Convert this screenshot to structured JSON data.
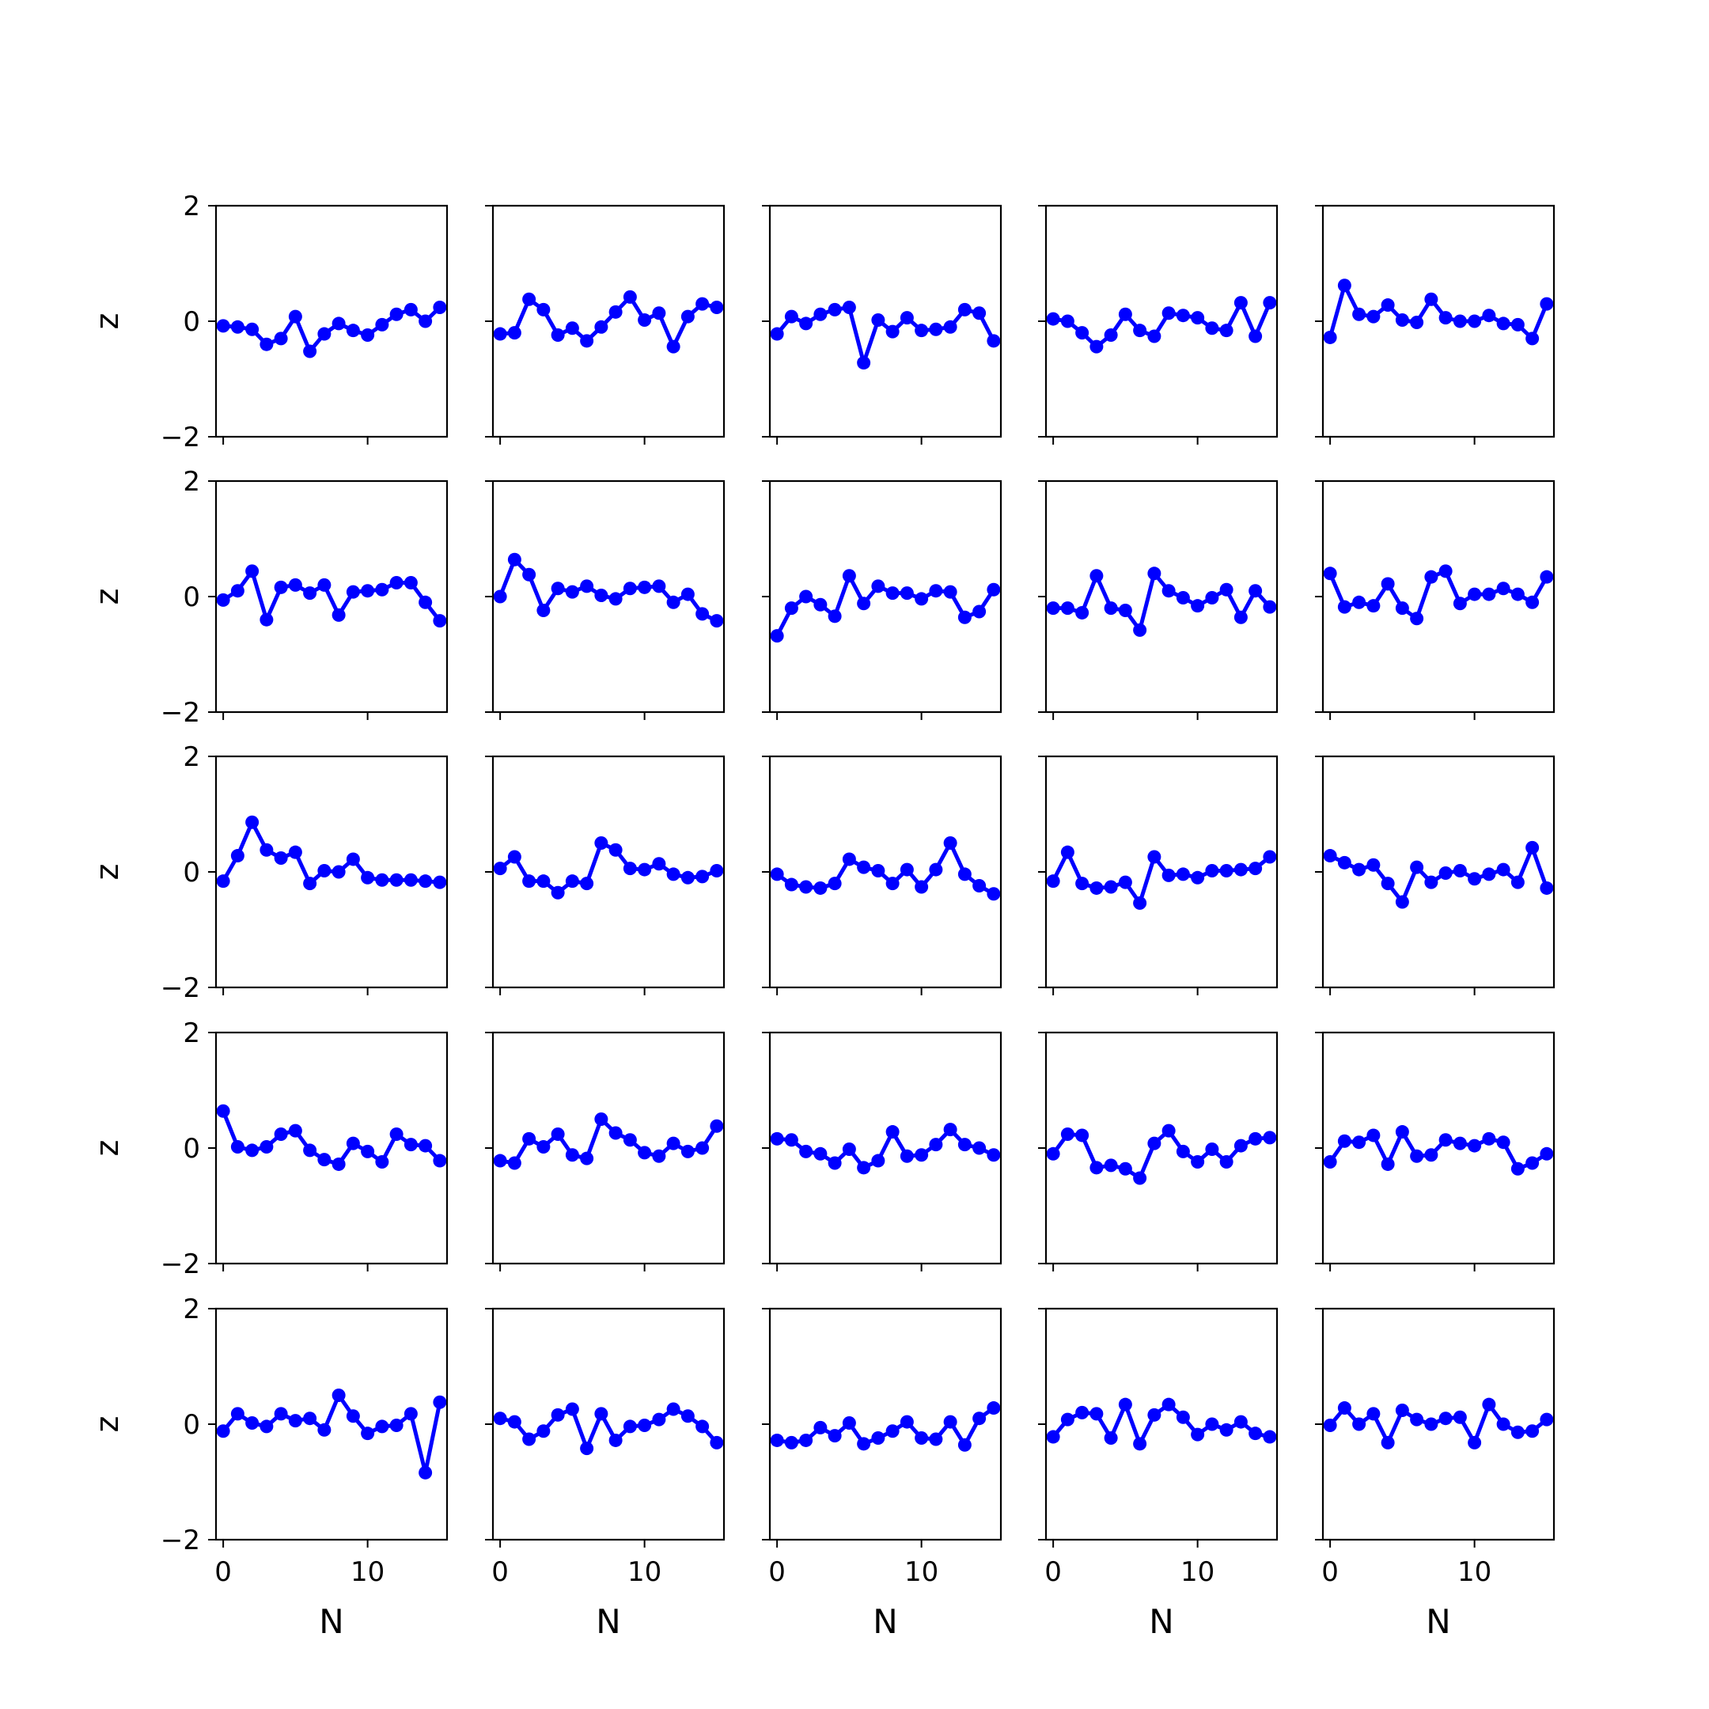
{
  "style": {
    "line_color": "#0000ff",
    "axes_color": "#000000",
    "background": "#ffffff"
  },
  "chart_data": {
    "type": "line",
    "layout": {
      "rows": 5,
      "cols": 5
    },
    "x": [
      0,
      1,
      2,
      3,
      4,
      5,
      6,
      7,
      8,
      9,
      10,
      11,
      12,
      13,
      14,
      15
    ],
    "xlabel": "N",
    "ylabel": "z",
    "xlim": [
      -0.5,
      15.5
    ],
    "ylim": [
      -2,
      2
    ],
    "xticks": [
      0,
      10
    ],
    "xtick_labels": [
      "0",
      "10"
    ],
    "yticks": [
      -2,
      0,
      2
    ],
    "ytick_labels": [
      "−2",
      "0",
      "2"
    ],
    "markers": true,
    "grid": false,
    "panels": [
      {
        "values": [
          -0.08,
          -0.1,
          -0.14,
          -0.4,
          -0.3,
          0.08,
          -0.52,
          -0.22,
          -0.04,
          -0.16,
          -0.24,
          -0.06,
          0.12,
          0.2,
          0.0,
          0.24
        ]
      },
      {
        "values": [
          -0.22,
          -0.2,
          0.38,
          0.2,
          -0.24,
          -0.12,
          -0.34,
          -0.1,
          0.16,
          0.42,
          0.02,
          0.14,
          -0.44,
          0.08,
          0.3,
          0.24
        ]
      },
      {
        "values": [
          -0.22,
          0.08,
          -0.04,
          0.12,
          0.2,
          0.24,
          -0.72,
          0.02,
          -0.18,
          0.06,
          -0.16,
          -0.14,
          -0.1,
          0.2,
          0.14,
          -0.34
        ]
      },
      {
        "values": [
          0.04,
          0.0,
          -0.2,
          -0.44,
          -0.24,
          0.12,
          -0.16,
          -0.26,
          0.14,
          0.1,
          0.06,
          -0.12,
          -0.16,
          0.32,
          -0.26,
          0.32
        ]
      },
      {
        "values": [
          -0.28,
          0.62,
          0.12,
          0.08,
          0.28,
          0.02,
          -0.02,
          0.38,
          0.06,
          0.0,
          0.0,
          0.1,
          -0.04,
          -0.06,
          -0.3,
          0.3
        ]
      },
      {
        "values": [
          -0.06,
          0.1,
          0.44,
          -0.4,
          0.16,
          0.2,
          0.06,
          0.2,
          -0.32,
          0.08,
          0.1,
          0.12,
          0.24,
          0.24,
          -0.1,
          -0.42
        ]
      },
      {
        "values": [
          0.0,
          0.64,
          0.38,
          -0.24,
          0.14,
          0.08,
          0.18,
          0.02,
          -0.04,
          0.14,
          0.16,
          0.18,
          -0.1,
          0.04,
          -0.3,
          -0.42
        ]
      },
      {
        "values": [
          -0.68,
          -0.2,
          0.0,
          -0.14,
          -0.34,
          0.36,
          -0.12,
          0.18,
          0.06,
          0.06,
          -0.04,
          0.1,
          0.08,
          -0.36,
          -0.26,
          0.12
        ]
      },
      {
        "values": [
          -0.2,
          -0.2,
          -0.28,
          0.36,
          -0.2,
          -0.24,
          -0.58,
          0.4,
          0.1,
          -0.02,
          -0.16,
          -0.02,
          0.12,
          -0.36,
          0.1,
          -0.18
        ]
      },
      {
        "values": [
          0.4,
          -0.18,
          -0.1,
          -0.16,
          0.22,
          -0.2,
          -0.38,
          0.34,
          0.44,
          -0.12,
          0.04,
          0.04,
          0.14,
          0.04,
          -0.1,
          0.34
        ]
      },
      {
        "values": [
          -0.16,
          0.28,
          0.86,
          0.38,
          0.24,
          0.34,
          -0.2,
          0.02,
          0.0,
          0.22,
          -0.1,
          -0.14,
          -0.14,
          -0.14,
          -0.16,
          -0.18
        ]
      },
      {
        "values": [
          0.06,
          0.26,
          -0.16,
          -0.16,
          -0.36,
          -0.16,
          -0.2,
          0.5,
          0.38,
          0.06,
          0.04,
          0.14,
          -0.04,
          -0.1,
          -0.08,
          0.02
        ]
      },
      {
        "values": [
          -0.04,
          -0.22,
          -0.26,
          -0.28,
          -0.2,
          0.22,
          0.08,
          0.02,
          -0.2,
          0.04,
          -0.26,
          0.04,
          0.5,
          -0.04,
          -0.24,
          -0.38
        ]
      },
      {
        "values": [
          -0.16,
          0.34,
          -0.2,
          -0.28,
          -0.26,
          -0.18,
          -0.54,
          0.26,
          -0.06,
          -0.04,
          -0.1,
          0.02,
          0.02,
          0.04,
          0.06,
          0.26
        ]
      },
      {
        "values": [
          0.28,
          0.16,
          0.04,
          0.12,
          -0.2,
          -0.52,
          0.08,
          -0.18,
          -0.02,
          0.02,
          -0.12,
          -0.04,
          0.04,
          -0.18,
          0.42,
          -0.28
        ]
      },
      {
        "values": [
          0.64,
          0.02,
          -0.04,
          0.02,
          0.24,
          0.3,
          -0.04,
          -0.2,
          -0.28,
          0.08,
          -0.06,
          -0.24,
          0.24,
          0.06,
          0.04,
          -0.22
        ]
      },
      {
        "values": [
          -0.22,
          -0.26,
          0.16,
          0.02,
          0.24,
          -0.12,
          -0.18,
          0.5,
          0.26,
          0.14,
          -0.08,
          -0.14,
          0.08,
          -0.06,
          0.0,
          0.38
        ]
      },
      {
        "values": [
          0.16,
          0.14,
          -0.06,
          -0.1,
          -0.26,
          -0.02,
          -0.34,
          -0.22,
          0.28,
          -0.14,
          -0.12,
          0.06,
          0.32,
          0.06,
          0.0,
          -0.12
        ]
      },
      {
        "values": [
          -0.1,
          0.24,
          0.22,
          -0.34,
          -0.3,
          -0.36,
          -0.52,
          0.08,
          0.3,
          -0.06,
          -0.24,
          -0.02,
          -0.24,
          0.04,
          0.16,
          0.18
        ]
      },
      {
        "values": [
          -0.24,
          0.12,
          0.1,
          0.22,
          -0.28,
          0.28,
          -0.14,
          -0.12,
          0.14,
          0.08,
          0.04,
          0.16,
          0.1,
          -0.36,
          -0.26,
          -0.1
        ]
      },
      {
        "values": [
          -0.12,
          0.18,
          0.02,
          -0.04,
          0.18,
          0.06,
          0.1,
          -0.1,
          0.5,
          0.14,
          -0.16,
          -0.04,
          -0.02,
          0.18,
          -0.84,
          0.38
        ]
      },
      {
        "values": [
          0.1,
          0.04,
          -0.26,
          -0.12,
          0.16,
          0.26,
          -0.42,
          0.18,
          -0.28,
          -0.04,
          -0.02,
          0.08,
          0.26,
          0.14,
          -0.04,
          -0.32
        ]
      },
      {
        "values": [
          -0.28,
          -0.32,
          -0.28,
          -0.06,
          -0.2,
          0.02,
          -0.34,
          -0.24,
          -0.12,
          0.04,
          -0.24,
          -0.26,
          0.04,
          -0.36,
          0.1,
          0.28
        ]
      },
      {
        "values": [
          -0.22,
          0.08,
          0.2,
          0.18,
          -0.24,
          0.34,
          -0.34,
          0.16,
          0.34,
          0.12,
          -0.18,
          0.0,
          -0.1,
          0.04,
          -0.16,
          -0.22
        ]
      },
      {
        "values": [
          -0.02,
          0.28,
          0.0,
          0.18,
          -0.32,
          0.24,
          0.08,
          0.0,
          0.1,
          0.12,
          -0.32,
          0.34,
          0.0,
          -0.14,
          -0.12,
          0.08
        ]
      }
    ]
  }
}
